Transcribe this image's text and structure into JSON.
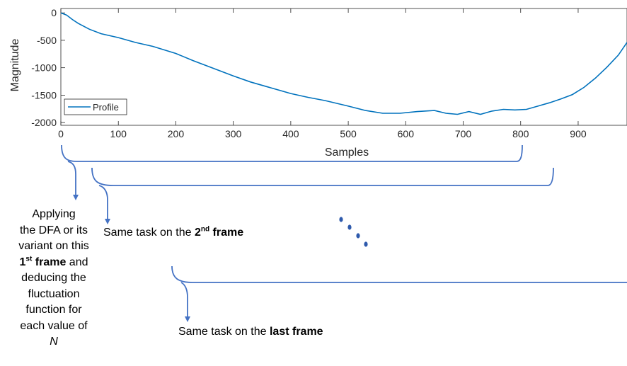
{
  "chart_data": {
    "type": "line",
    "xlabel": "Samples",
    "ylabel": "Magnitude",
    "xlim": [
      0,
      985
    ],
    "ylim": [
      -2050,
      80
    ],
    "xticks": [
      0,
      100,
      200,
      300,
      400,
      500,
      600,
      700,
      800,
      900
    ],
    "yticks": [
      0,
      -500,
      -1000,
      -1500,
      -2000
    ],
    "grid": false,
    "legend_position": "lower-left",
    "series": [
      {
        "name": "Profile",
        "color": "#0072BD",
        "x": [
          0,
          10,
          20,
          30,
          50,
          70,
          100,
          130,
          160,
          200,
          230,
          260,
          300,
          330,
          360,
          400,
          430,
          460,
          500,
          530,
          560,
          590,
          620,
          650,
          670,
          690,
          710,
          730,
          750,
          770,
          790,
          810,
          830,
          850,
          870,
          890,
          910,
          930,
          950,
          970,
          985
        ],
        "y": [
          0,
          -40,
          -120,
          -190,
          -300,
          -380,
          -450,
          -540,
          -610,
          -740,
          -870,
          -990,
          -1150,
          -1260,
          -1350,
          -1470,
          -1540,
          -1600,
          -1700,
          -1780,
          -1830,
          -1830,
          -1800,
          -1780,
          -1830,
          -1850,
          -1800,
          -1850,
          -1790,
          -1760,
          -1770,
          -1760,
          -1700,
          -1640,
          -1570,
          -1490,
          -1360,
          -1190,
          -990,
          -770,
          -540
        ]
      }
    ]
  },
  "annotations": {
    "frame1_line1": "Applying",
    "frame1_line2": "the DFA or its",
    "frame1_line3": "variant on this",
    "frame1_ord_num": "1",
    "frame1_ord_sup": "st",
    "frame1_bold_word": "frame",
    "frame1_line4_tail": " and",
    "frame1_line5": "deducing the",
    "frame1_line6": "fluctuation",
    "frame1_line7": "function for",
    "frame1_line8": "each value of",
    "frame1_line9": "N",
    "frame2_prefix": "Same task on the ",
    "frame2_ord_num": "2",
    "frame2_ord_sup": "nd",
    "frame2_bold_word": "frame",
    "frame3_prefix": "Same task on the ",
    "frame3_bold": "last frame"
  },
  "colors": {
    "profile_line": "#0072BD",
    "brace": "#4472C4",
    "axis": "#262626",
    "dots": "#2E5AAC"
  }
}
